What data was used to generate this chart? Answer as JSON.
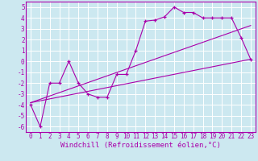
{
  "background_color": "#cce8f0",
  "grid_color": "#ffffff",
  "line_color": "#aa00aa",
  "marker": "+",
  "xlabel": "Windchill (Refroidissement éolien,°C)",
  "xlim": [
    -0.5,
    23.5
  ],
  "ylim": [
    -6.5,
    5.5
  ],
  "xticks": [
    0,
    1,
    2,
    3,
    4,
    5,
    6,
    7,
    8,
    9,
    10,
    11,
    12,
    13,
    14,
    15,
    16,
    17,
    18,
    19,
    20,
    21,
    22,
    23
  ],
  "yticks": [
    -6,
    -5,
    -4,
    -3,
    -2,
    -1,
    0,
    1,
    2,
    3,
    4,
    5
  ],
  "series1_x": [
    0,
    1,
    2,
    3,
    4,
    5,
    6,
    7,
    8,
    9,
    10,
    11,
    12,
    13,
    14,
    15,
    16,
    17,
    18,
    19,
    20,
    21,
    22,
    23
  ],
  "series1_y": [
    -4,
    -6,
    -2,
    -2,
    0,
    -2,
    -3,
    -3.3,
    -3.3,
    -1.2,
    -1.2,
    1.0,
    3.7,
    3.8,
    4.1,
    5.0,
    4.5,
    4.5,
    4.0,
    4.0,
    4.0,
    4.0,
    2.2,
    0.2
  ],
  "series2_x": [
    0,
    23
  ],
  "series2_y": [
    -3.8,
    0.2
  ],
  "series3_x": [
    0,
    23
  ],
  "series3_y": [
    -3.8,
    3.3
  ],
  "xlabel_fontsize": 6.5,
  "tick_fontsize": 5.5,
  "linewidth": 0.8,
  "markersize": 3.5
}
